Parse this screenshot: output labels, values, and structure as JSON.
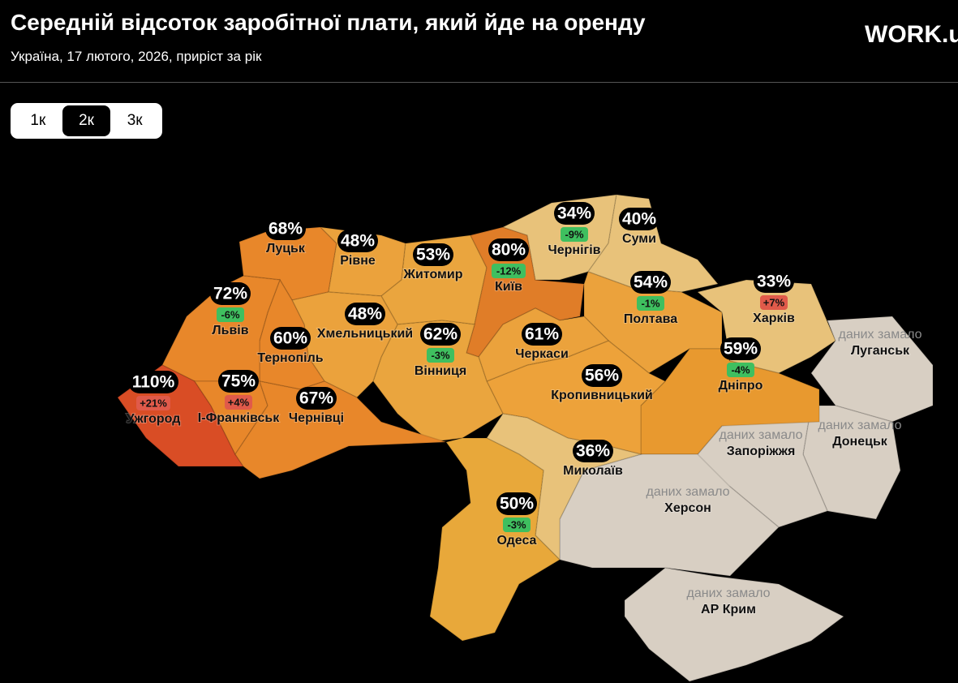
{
  "header": {
    "title": "Середній відсоток заробітної плати, який йде на оренду",
    "subtitle": "Україна, 17 лютого, 2026, приріст за рік",
    "logo": "WORK.ua"
  },
  "tabs": [
    {
      "label": "1к",
      "active": false
    },
    {
      "label": "2к",
      "active": true
    },
    {
      "label": "3к",
      "active": false
    }
  ],
  "regions": [
    {
      "name": "Луцьк",
      "value": "68%",
      "color": "#e8872a"
    },
    {
      "name": "Рівне",
      "value": "48%",
      "color": "#eba23c"
    },
    {
      "name": "Житомир",
      "value": "53%",
      "color": "#eaa53e"
    },
    {
      "name": "Київ",
      "value": "80%",
      "change": "-12%",
      "color": "#e07d28"
    },
    {
      "name": "Чернігів",
      "value": "34%",
      "change": "-9%",
      "color": "#e8c27a"
    },
    {
      "name": "Суми",
      "value": "40%",
      "color": "#e8c27a"
    },
    {
      "name": "Полтава",
      "value": "54%",
      "change": "-1%",
      "color": "#eba23c"
    },
    {
      "name": "Харків",
      "value": "33%",
      "change": "+7%",
      "color": "#e8c27a"
    },
    {
      "name": "Луганськ",
      "note": "даних замало",
      "color": "#d8cfc3"
    },
    {
      "name": "Донецьк",
      "note": "даних замало",
      "color": "#d8cfc3"
    },
    {
      "name": "Запоріжжя",
      "note": "даних замало",
      "color": "#d8cfc3"
    },
    {
      "name": "Дніпро",
      "value": "59%",
      "change": "-4%",
      "color": "#e8992f"
    },
    {
      "name": "Херсон",
      "note": "даних замало",
      "color": "#d8cfc3"
    },
    {
      "name": "АР Крим",
      "note": "даних замало",
      "color": "#d8cfc3"
    },
    {
      "name": "Кропивницький",
      "value": "56%",
      "color": "#eda23a"
    },
    {
      "name": "Черкаси",
      "value": "61%",
      "color": "#eba23c"
    },
    {
      "name": "Вінниця",
      "value": "62%",
      "change": "-3%",
      "color": "#eaa53e"
    },
    {
      "name": "Хмельницький",
      "value": "48%",
      "color": "#eba23c"
    },
    {
      "name": "Тернопіль",
      "value": "60%",
      "color": "#e8872a"
    },
    {
      "name": "Львів",
      "value": "72%",
      "change": "-6%",
      "color": "#e8872a"
    },
    {
      "name": "Ужгород",
      "value": "110%",
      "change": "+21%",
      "color": "#d94d25"
    },
    {
      "name": "І-Франківськ",
      "value": "75%",
      "change": "+4%",
      "color": "#e8872a"
    },
    {
      "name": "Чернівці",
      "value": "67%",
      "color": "#e8872a"
    },
    {
      "name": "Миколаїв",
      "value": "36%",
      "color": "#e8c27a"
    },
    {
      "name": "Одеса",
      "value": "50%",
      "change": "-3%",
      "color": "#e8a83a"
    }
  ]
}
